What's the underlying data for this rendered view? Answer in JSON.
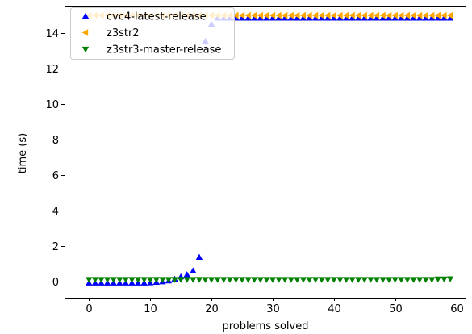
{
  "chart_data": {
    "type": "scatter",
    "title": "",
    "xlabel": "problems solved",
    "ylabel": "time (s)",
    "xlim": [
      -4,
      61.5
    ],
    "ylim": [
      -0.9,
      15.5
    ],
    "xticks": [
      0,
      10,
      20,
      30,
      40,
      50,
      60
    ],
    "yticks": [
      0,
      2,
      4,
      6,
      8,
      10,
      12,
      14
    ],
    "legend_position": "top-left",
    "grid": false,
    "series": [
      {
        "name": "cvc4-latest-release",
        "marker": "triangle-up",
        "color": "#0000ff",
        "x": [
          0,
          1,
          2,
          3,
          4,
          5,
          6,
          7,
          8,
          9,
          10,
          11,
          12,
          13,
          14,
          15,
          16,
          17,
          18,
          19,
          20,
          21,
          22,
          23,
          24,
          25,
          26,
          27,
          28,
          29,
          30,
          31,
          32,
          33,
          34,
          35,
          36,
          37,
          38,
          39,
          40,
          41,
          42,
          43,
          44,
          45,
          46,
          47,
          48,
          49,
          50,
          51,
          52,
          53,
          54,
          55,
          56,
          57,
          58,
          59
        ],
        "y": [
          -0.07,
          -0.07,
          -0.07,
          -0.07,
          -0.07,
          -0.07,
          -0.07,
          -0.07,
          -0.07,
          -0.07,
          -0.06,
          -0.03,
          0.0,
          0.05,
          0.15,
          0.28,
          0.4,
          0.62,
          1.38,
          13.55,
          14.5,
          14.85,
          14.85,
          14.85,
          14.85,
          14.85,
          14.85,
          14.85,
          14.85,
          14.85,
          14.85,
          14.85,
          14.85,
          14.85,
          14.85,
          14.85,
          14.85,
          14.85,
          14.85,
          14.85,
          14.85,
          14.85,
          14.85,
          14.85,
          14.85,
          14.85,
          14.85,
          14.85,
          14.85,
          14.85,
          14.85,
          14.85,
          14.85,
          14.85,
          14.85,
          14.85,
          14.85,
          14.85,
          14.85,
          14.85
        ]
      },
      {
        "name": "z3str2",
        "marker": "triangle-left",
        "color": "#ffa500",
        "x": [
          0,
          1,
          2,
          3,
          4,
          5,
          6,
          7,
          8,
          9,
          10,
          11,
          12,
          13,
          14,
          15,
          16,
          17,
          18,
          19,
          20,
          21,
          22,
          23,
          24,
          25,
          26,
          27,
          28,
          29,
          30,
          31,
          32,
          33,
          34,
          35,
          36,
          37,
          38,
          39,
          40,
          41,
          42,
          43,
          44,
          45,
          46,
          47,
          48,
          49,
          50,
          51,
          52,
          53,
          54,
          55,
          56,
          57,
          58,
          59
        ],
        "y": [
          15.0,
          15.0,
          15.0,
          15.0,
          15.0,
          15.0,
          15.0,
          15.0,
          15.0,
          15.0,
          15.0,
          15.0,
          15.0,
          15.0,
          15.0,
          15.0,
          15.0,
          15.0,
          15.0,
          15.0,
          15.0,
          15.0,
          15.0,
          15.0,
          15.0,
          15.0,
          15.0,
          15.0,
          15.0,
          15.0,
          15.0,
          15.0,
          15.0,
          15.0,
          15.0,
          15.0,
          15.0,
          15.0,
          15.0,
          15.0,
          15.0,
          15.0,
          15.0,
          15.0,
          15.0,
          15.0,
          15.0,
          15.0,
          15.0,
          15.0,
          15.0,
          15.0,
          15.0,
          15.0,
          15.0,
          15.0,
          15.0,
          15.0,
          15.0,
          15.0
        ]
      },
      {
        "name": "z3str3-master-release",
        "marker": "triangle-down",
        "color": "#008000",
        "x": [
          0,
          1,
          2,
          3,
          4,
          5,
          6,
          7,
          8,
          9,
          10,
          11,
          12,
          13,
          14,
          15,
          16,
          17,
          18,
          19,
          20,
          21,
          22,
          23,
          24,
          25,
          26,
          27,
          28,
          29,
          30,
          31,
          32,
          33,
          34,
          35,
          36,
          37,
          38,
          39,
          40,
          41,
          42,
          43,
          44,
          45,
          46,
          47,
          48,
          49,
          50,
          51,
          52,
          53,
          54,
          55,
          56,
          57,
          58,
          59
        ],
        "y": [
          0.12,
          0.12,
          0.12,
          0.12,
          0.12,
          0.12,
          0.12,
          0.12,
          0.12,
          0.12,
          0.12,
          0.12,
          0.12,
          0.12,
          0.12,
          0.12,
          0.12,
          0.12,
          0.12,
          0.12,
          0.12,
          0.12,
          0.12,
          0.12,
          0.12,
          0.12,
          0.12,
          0.12,
          0.12,
          0.12,
          0.12,
          0.12,
          0.12,
          0.12,
          0.12,
          0.12,
          0.12,
          0.12,
          0.12,
          0.12,
          0.12,
          0.12,
          0.12,
          0.12,
          0.12,
          0.12,
          0.12,
          0.12,
          0.12,
          0.12,
          0.12,
          0.12,
          0.12,
          0.12,
          0.12,
          0.12,
          0.12,
          0.15,
          0.15,
          0.16
        ]
      }
    ]
  }
}
